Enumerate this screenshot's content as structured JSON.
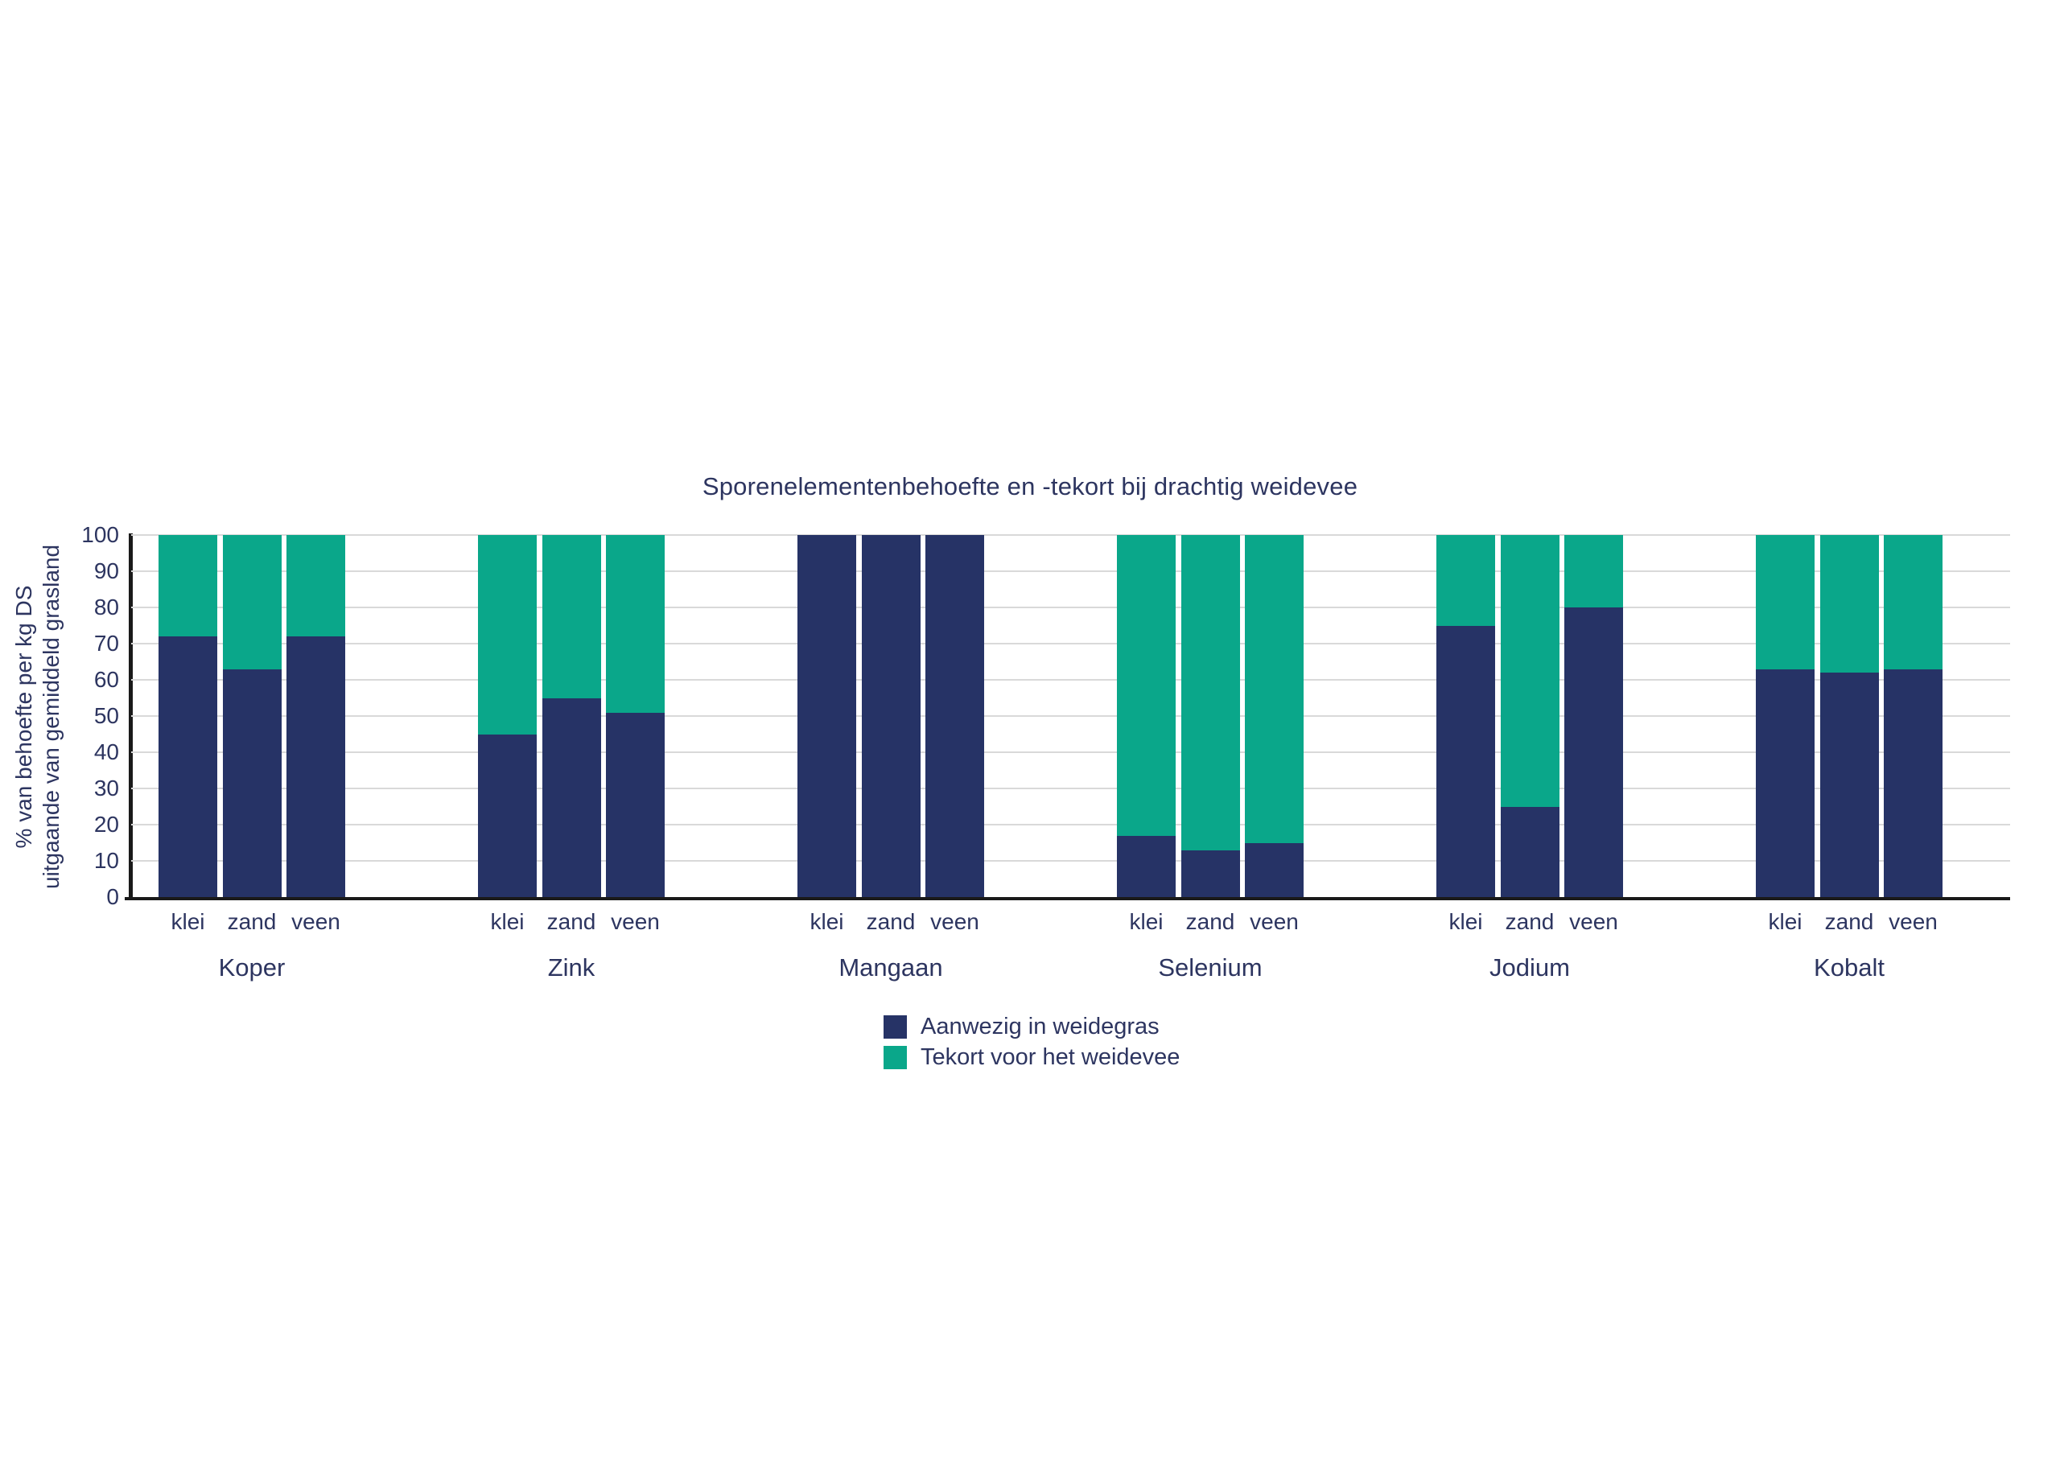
{
  "chart_data": {
    "type": "bar",
    "stacked": true,
    "title": "Sporenelementenbehoefte en -tekort bij drachtig weidevee",
    "ylabel": [
      "% van behoefte per kg DS",
      "uitgaande van gemiddeld grasland"
    ],
    "xlabel": "",
    "ylim": [
      0,
      100
    ],
    "yticks": [
      0,
      10,
      20,
      30,
      40,
      50,
      60,
      70,
      80,
      90,
      100
    ],
    "grid": "horizontal",
    "legend_position": "bottom-center",
    "groups": [
      "Koper",
      "Zink",
      "Mangaan",
      "Selenium",
      "Jodium",
      "Kobalt"
    ],
    "categories": [
      "klei",
      "zand",
      "veen"
    ],
    "series": [
      {
        "name": "Aanwezig in weidegras",
        "color": "#263366",
        "values": [
          [
            72,
            63,
            72
          ],
          [
            45,
            55,
            51
          ],
          [
            100,
            100,
            100
          ],
          [
            17,
            13,
            15
          ],
          [
            75,
            25,
            80
          ],
          [
            63,
            62,
            63
          ]
        ]
      },
      {
        "name": "Tekort voor het weidevee",
        "color": "#0aa78a",
        "values": [
          [
            28,
            37,
            28
          ],
          [
            55,
            45,
            49
          ],
          [
            0,
            0,
            0
          ],
          [
            83,
            87,
            85
          ],
          [
            25,
            75,
            20
          ],
          [
            37,
            38,
            37
          ]
        ]
      }
    ],
    "colors": {
      "axis": "#1a1a1a",
      "gridline": "#d9d9d9",
      "text": "#2d3560"
    }
  }
}
